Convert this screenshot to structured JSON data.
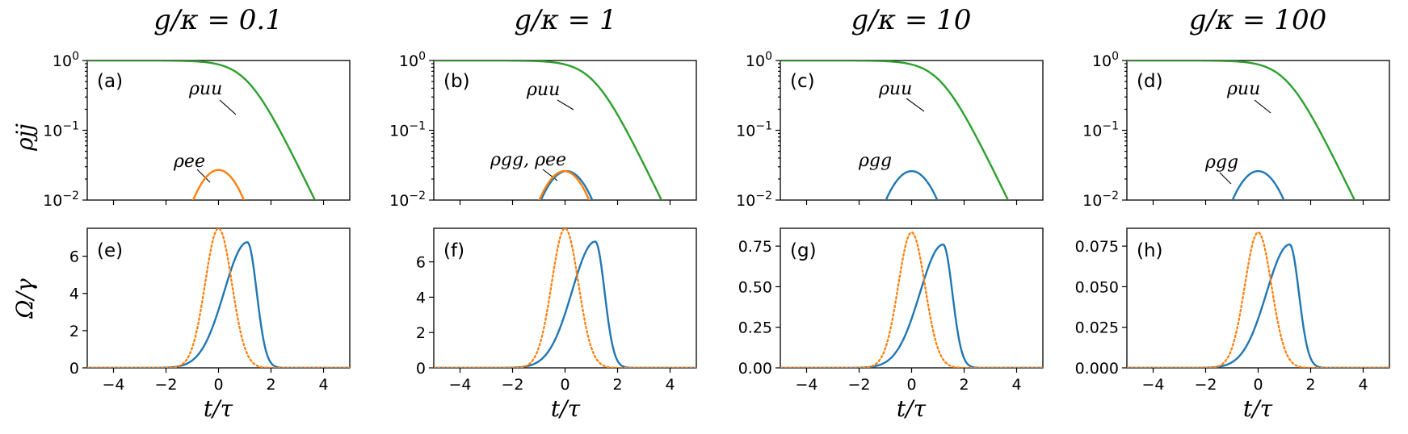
{
  "columns": [
    {
      "title": "g/κ = 0.1",
      "top_label": "(a)",
      "bottom_label": "(e)"
    },
    {
      "title": "g/κ = 1",
      "top_label": "(b)",
      "bottom_label": "(f)"
    },
    {
      "title": "g/κ = 10",
      "top_label": "(c)",
      "bottom_label": "(g)"
    },
    {
      "title": "g/κ = 100",
      "top_label": "(d)",
      "bottom_label": "(h)"
    }
  ],
  "y_labels": {
    "top": "ρjj",
    "bottom": "Ω/γ"
  },
  "x_label": "t/τ",
  "colors": {
    "blue": "#1f77b4",
    "orange": "#ff7f0e",
    "green": "#2ca02c"
  },
  "chart_data": [
    {
      "type": "line",
      "scale": "log",
      "panel": "(a)",
      "title": "g/κ = 0.1",
      "xlim": [
        -5,
        5
      ],
      "ylim": [
        0.01,
        1
      ],
      "xticks": [
        -4,
        -2,
        0,
        2,
        4
      ],
      "yticks": [
        {
          "value": 1,
          "base": "10",
          "exp": "0"
        },
        {
          "value": 0.1,
          "base": "10",
          "exp": "−1"
        },
        {
          "value": 0.01,
          "base": "10",
          "exp": "−2"
        }
      ],
      "series": [
        {
          "name": "ρuu",
          "color": "green",
          "kind": "sigmoid",
          "center": 1.1,
          "width": 0.56
        },
        {
          "name": "ρee",
          "color": "orange",
          "kind": "bump",
          "peak": 0.027,
          "center": 0,
          "width": 0.97
        }
      ],
      "annotations": [
        {
          "text": "ρuu",
          "series": "ρuu"
        },
        {
          "text": "ρee",
          "series": "ρee"
        }
      ]
    },
    {
      "type": "line",
      "scale": "log",
      "panel": "(b)",
      "title": "g/κ = 1",
      "xlim": [
        -5,
        5
      ],
      "ylim": [
        0.01,
        1
      ],
      "xticks": [
        -4,
        -2,
        0,
        2,
        4
      ],
      "yticks": [
        {
          "value": 1,
          "base": "10",
          "exp": "0"
        },
        {
          "value": 0.1,
          "base": "10",
          "exp": "−1"
        },
        {
          "value": 0.01,
          "base": "10",
          "exp": "−2"
        }
      ],
      "series": [
        {
          "name": "ρuu",
          "color": "green",
          "kind": "sigmoid",
          "center": 1.1,
          "width": 0.56
        },
        {
          "name": "ρgg",
          "color": "blue",
          "kind": "bump",
          "peak": 0.026,
          "center": 0.06,
          "width": 1.0
        },
        {
          "name": "ρee",
          "color": "orange",
          "kind": "bump",
          "peak": 0.026,
          "center": -0.03,
          "width": 0.97
        }
      ],
      "annotations": [
        {
          "text": "ρuu",
          "series": "ρuu"
        },
        {
          "text": "ρgg, ρee",
          "series": "ρgg"
        }
      ]
    },
    {
      "type": "line",
      "scale": "log",
      "panel": "(c)",
      "title": "g/κ = 10",
      "xlim": [
        -5,
        5
      ],
      "ylim": [
        0.01,
        1
      ],
      "xticks": [
        -4,
        -2,
        0,
        2,
        4
      ],
      "yticks": [
        {
          "value": 1,
          "base": "10",
          "exp": "0"
        },
        {
          "value": 0.1,
          "base": "10",
          "exp": "−1"
        },
        {
          "value": 0.01,
          "base": "10",
          "exp": "−2"
        }
      ],
      "series": [
        {
          "name": "ρuu",
          "color": "green",
          "kind": "sigmoid",
          "center": 1.1,
          "width": 0.56
        },
        {
          "name": "ρgg",
          "color": "blue",
          "kind": "bump",
          "peak": 0.026,
          "center": 0,
          "width": 1.0
        }
      ],
      "annotations": [
        {
          "text": "ρuu",
          "series": "ρuu"
        },
        {
          "text": "ρgg",
          "series": "ρgg"
        }
      ]
    },
    {
      "type": "line",
      "scale": "log",
      "panel": "(d)",
      "title": "g/κ = 100",
      "xlim": [
        -5,
        5
      ],
      "ylim": [
        0.01,
        1
      ],
      "xticks": [
        -4,
        -2,
        0,
        2,
        4
      ],
      "yticks": [
        {
          "value": 1,
          "base": "10",
          "exp": "0"
        },
        {
          "value": 0.1,
          "base": "10",
          "exp": "−1"
        },
        {
          "value": 0.01,
          "base": "10",
          "exp": "−2"
        }
      ],
      "series": [
        {
          "name": "ρuu",
          "color": "green",
          "kind": "sigmoid",
          "center": 1.1,
          "width": 0.56
        },
        {
          "name": "ρgg",
          "color": "blue",
          "kind": "bump",
          "peak": 0.026,
          "center": 0,
          "width": 1.0
        }
      ],
      "annotations": [
        {
          "text": "ρuu",
          "series": "ρuu"
        },
        {
          "text": "ρgg",
          "series": "ρgg"
        }
      ]
    },
    {
      "type": "line",
      "scale": "linear",
      "panel": "(e)",
      "xlim": [
        -5,
        5
      ],
      "ylim": [
        0,
        7.5
      ],
      "xticks": [
        -4,
        -2,
        0,
        2,
        4
      ],
      "yticks": [
        {
          "value": 0,
          "label": "0"
        },
        {
          "value": 2,
          "label": "2"
        },
        {
          "value": 4,
          "label": "4"
        },
        {
          "value": 6,
          "label": "6"
        }
      ],
      "xlabel": "t/τ",
      "ylabel": "Ω/γ",
      "series": [
        {
          "name": "Ω (solid)",
          "color": "blue",
          "style": "solid",
          "kind": "skewed",
          "peak": 6.75,
          "peak_x": 1.1,
          "rise_width": 1.25,
          "fall_width": 0.5
        },
        {
          "name": "Gaussian (dotted)",
          "color": "orange",
          "style": "dotted",
          "kind": "gaussian",
          "peak": 7.5,
          "center": 0,
          "width": 0.72
        }
      ]
    },
    {
      "type": "line",
      "scale": "linear",
      "panel": "(f)",
      "xlim": [
        -5,
        5
      ],
      "ylim": [
        0,
        7.9
      ],
      "xticks": [
        -4,
        -2,
        0,
        2,
        4
      ],
      "yticks": [
        {
          "value": 0,
          "label": "0"
        },
        {
          "value": 2,
          "label": "2"
        },
        {
          "value": 4,
          "label": "4"
        },
        {
          "value": 6,
          "label": "6"
        }
      ],
      "xlabel": "t/τ",
      "series": [
        {
          "name": "Ω (solid)",
          "color": "blue",
          "style": "solid",
          "kind": "skewed",
          "peak": 7.15,
          "peak_x": 1.15,
          "rise_width": 1.25,
          "fall_width": 0.5
        },
        {
          "name": "Gaussian (dotted)",
          "color": "orange",
          "style": "dotted",
          "kind": "gaussian",
          "peak": 7.9,
          "center": 0,
          "width": 0.72
        }
      ]
    },
    {
      "type": "line",
      "scale": "linear",
      "panel": "(g)",
      "xlim": [
        -5,
        5
      ],
      "ylim": [
        0,
        0.86
      ],
      "xticks": [
        -4,
        -2,
        0,
        2,
        4
      ],
      "yticks": [
        {
          "value": 0,
          "label": "0.00"
        },
        {
          "value": 0.25,
          "label": "0.25"
        },
        {
          "value": 0.5,
          "label": "0.50"
        },
        {
          "value": 0.75,
          "label": "0.75"
        }
      ],
      "xlabel": "t/τ",
      "series": [
        {
          "name": "Ω (solid)",
          "color": "blue",
          "style": "solid",
          "kind": "skewed",
          "peak": 0.76,
          "peak_x": 1.2,
          "rise_width": 1.25,
          "fall_width": 0.5
        },
        {
          "name": "Gaussian (dotted)",
          "color": "orange",
          "style": "dotted",
          "kind": "gaussian",
          "peak": 0.835,
          "center": 0,
          "width": 0.72
        }
      ]
    },
    {
      "type": "line",
      "scale": "linear",
      "panel": "(h)",
      "xlim": [
        -5,
        5
      ],
      "ylim": [
        0,
        0.086
      ],
      "xticks": [
        -4,
        -2,
        0,
        2,
        4
      ],
      "yticks": [
        {
          "value": 0,
          "label": "0.000"
        },
        {
          "value": 0.025,
          "label": "0.025"
        },
        {
          "value": 0.05,
          "label": "0.050"
        },
        {
          "value": 0.075,
          "label": "0.075"
        }
      ],
      "xlabel": "t/τ",
      "series": [
        {
          "name": "Ω (solid)",
          "color": "blue",
          "style": "solid",
          "kind": "skewed",
          "peak": 0.076,
          "peak_x": 1.2,
          "rise_width": 1.25,
          "fall_width": 0.5
        },
        {
          "name": "Gaussian (dotted)",
          "color": "orange",
          "style": "dotted",
          "kind": "gaussian",
          "peak": 0.0835,
          "center": 0,
          "width": 0.72
        }
      ]
    }
  ]
}
